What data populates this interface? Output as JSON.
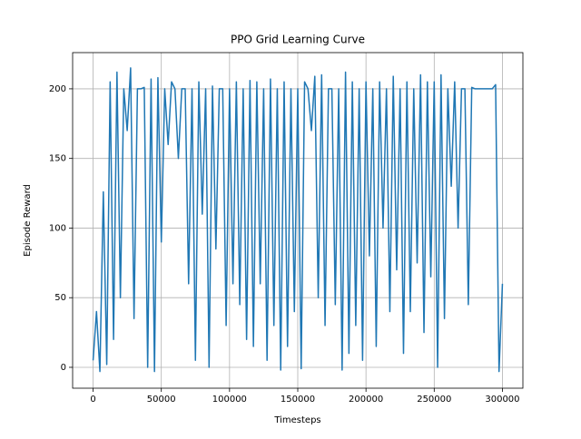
{
  "chart_data": {
    "type": "line",
    "title": "PPO Grid Learning Curve",
    "xlabel": "Timesteps",
    "ylabel": "Episode Reward",
    "x": [
      0,
      2500,
      5000,
      7500,
      10000,
      12500,
      15000,
      17500,
      20000,
      22500,
      25000,
      27500,
      30000,
      32500,
      35000,
      37500,
      40000,
      42500,
      45000,
      47500,
      50000,
      52500,
      55000,
      57500,
      60000,
      62500,
      65000,
      67500,
      70000,
      72500,
      75000,
      77500,
      80000,
      82500,
      85000,
      87500,
      90000,
      92500,
      95000,
      97500,
      100000,
      102500,
      105000,
      107500,
      110000,
      112500,
      115000,
      117500,
      120000,
      122500,
      125000,
      127500,
      130000,
      132500,
      135000,
      137500,
      140000,
      142500,
      145000,
      147500,
      150000,
      152500,
      155000,
      157500,
      160000,
      162500,
      165000,
      167500,
      170000,
      172500,
      175000,
      177500,
      180000,
      182500,
      185000,
      187500,
      190000,
      192500,
      195000,
      197500,
      200000,
      202500,
      205000,
      207500,
      210000,
      212500,
      215000,
      217500,
      220000,
      222500,
      225000,
      227500,
      230000,
      232500,
      235000,
      237500,
      240000,
      242500,
      245000,
      247500,
      250000,
      252500,
      255000,
      257500,
      260000,
      262500,
      265000,
      267500,
      270000,
      272500,
      275000,
      277500,
      280000,
      282500,
      285000,
      287500,
      290000,
      292500,
      295000,
      297500,
      300000
    ],
    "values": [
      5,
      40,
      -3,
      126,
      2,
      205,
      20,
      212,
      50,
      200,
      170,
      215,
      35,
      200,
      200,
      201,
      0,
      207,
      -3,
      208,
      90,
      200,
      160,
      205,
      200,
      150,
      200,
      200,
      60,
      200,
      5,
      205,
      110,
      200,
      0,
      202,
      85,
      200,
      200,
      30,
      200,
      60,
      205,
      45,
      200,
      20,
      206,
      15,
      205,
      60,
      200,
      5,
      207,
      30,
      200,
      -2,
      205,
      15,
      200,
      40,
      200,
      -1,
      205,
      200,
      170,
      209,
      50,
      210,
      30,
      200,
      200,
      45,
      200,
      -2,
      212,
      10,
      205,
      30,
      200,
      5,
      205,
      80,
      200,
      15,
      205,
      100,
      200,
      40,
      209,
      70,
      200,
      10,
      205,
      40,
      200,
      75,
      210,
      25,
      205,
      65,
      205,
      0,
      210,
      35,
      200,
      130,
      205,
      100,
      200,
      200,
      45,
      201,
      200,
      200,
      200,
      200,
      200,
      200,
      203,
      -3,
      60
    ],
    "color": "#1f77b4",
    "xlim": [
      -15000,
      315000
    ],
    "ylim": [
      -15,
      226
    ],
    "xticks": [
      0,
      50000,
      100000,
      150000,
      200000,
      250000,
      300000
    ],
    "yticks": [
      0,
      50,
      100,
      150,
      200
    ],
    "grid": true
  }
}
